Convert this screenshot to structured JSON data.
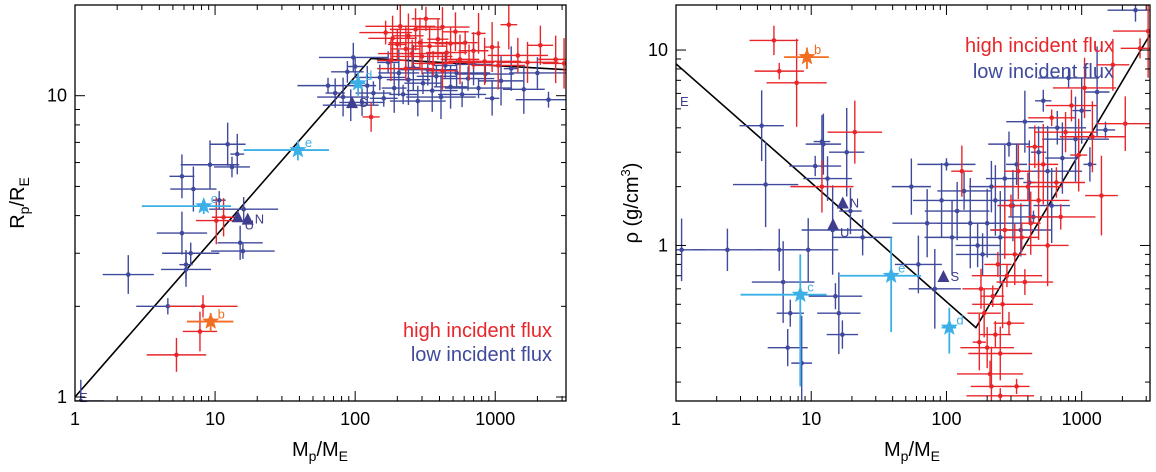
{
  "colors": {
    "high": "#e8262a",
    "low": "#3f4a9c",
    "moon": "#3bb0e6",
    "orange": "#f26d21",
    "solar": "#3f3d8f",
    "fit": "#000000"
  },
  "chart_data": [
    {
      "type": "scatter",
      "xlabel": "Mp/ME",
      "xlabel_main": "M",
      "xlabel_sub": "p",
      "xlabel_mid": "/M",
      "xlabel_sub2": "E",
      "ylabel_main": "R",
      "ylabel_sub": "p",
      "ylabel_mid": "/R",
      "ylabel_sub2": "E",
      "xscale": "log",
      "yscale": "log",
      "xlim": [
        1,
        3200
      ],
      "ylim": [
        0.97,
        20
      ],
      "x_ticks": [
        1,
        10,
        100,
        1000
      ],
      "x_tick_labels": [
        "1",
        "10",
        "100",
        "1000"
      ],
      "y_ticks": [
        1,
        10
      ],
      "y_tick_labels": [
        "1",
        "10"
      ],
      "legend": {
        "placement": "bottom-right",
        "entries": [
          {
            "label": "high incident flux",
            "color": "#e8262a"
          },
          {
            "label": "low incident flux",
            "color": "#3f4a9c"
          }
        ]
      },
      "fit_line": [
        [
          1,
          1.0
        ],
        [
          130,
          13.3
        ],
        [
          3200,
          12.2
        ]
      ],
      "highlighted": [
        {
          "label": "b",
          "x": 9.3,
          "y": 1.78,
          "color": "#f26d21",
          "xerr": [
            6.3,
            13.5
          ],
          "yerr": [
            1.65,
            1.9
          ]
        },
        {
          "label": "c",
          "x": 8.3,
          "y": 4.3,
          "color": "#3bb0e6",
          "xerr": [
            3.0,
            13.0
          ],
          "yerr": [
            4.05,
            4.55
          ]
        },
        {
          "label": "e",
          "x": 39,
          "y": 6.6,
          "color": "#3bb0e6",
          "xerr": [
            16,
            65
          ],
          "yerr": [
            6.1,
            7.1
          ]
        },
        {
          "label": "d",
          "x": 105,
          "y": 11.0,
          "color": "#3bb0e6",
          "xerr": [
            92,
            118
          ],
          "yerr": [
            10.0,
            12.0
          ]
        }
      ],
      "solar_system": [
        {
          "label": "E",
          "x": 1.0,
          "y": 1.0
        },
        {
          "label": "U",
          "x": 14.5,
          "y": 3.95
        },
        {
          "label": "N",
          "x": 17.1,
          "y": 3.88
        },
        {
          "label": "S",
          "x": 95,
          "y": 9.45
        }
      ],
      "high_flux": [
        [
          5.3,
          1.38
        ],
        [
          7.8,
          1.65
        ],
        [
          8.2,
          2.0
        ],
        [
          10.2,
          3.85
        ],
        [
          11.5,
          3.95
        ],
        [
          130,
          8.5
        ],
        [
          165,
          16.2
        ],
        [
          185,
          15.5
        ],
        [
          200,
          14.8
        ],
        [
          210,
          17.0
        ],
        [
          230,
          14.3
        ],
        [
          240,
          15.8
        ],
        [
          255,
          13.8
        ],
        [
          270,
          16.6
        ],
        [
          290,
          15.0
        ],
        [
          300,
          13.5
        ],
        [
          320,
          18.0
        ],
        [
          340,
          14.6
        ],
        [
          360,
          12.8
        ],
        [
          390,
          15.4
        ],
        [
          420,
          16.9
        ],
        [
          450,
          13.9
        ],
        [
          480,
          14.9
        ],
        [
          520,
          16.3
        ],
        [
          560,
          13.2
        ],
        [
          610,
          15.0
        ],
        [
          650,
          12.9
        ],
        [
          700,
          14.1
        ],
        [
          760,
          16.1
        ],
        [
          840,
          13.0
        ],
        [
          950,
          14.5
        ],
        [
          1050,
          12.6
        ],
        [
          1250,
          17.2
        ],
        [
          1450,
          13.6
        ],
        [
          1700,
          12.9
        ],
        [
          2100,
          14.7
        ],
        [
          2700,
          13.2
        ],
        [
          3100,
          12.8
        ],
        [
          230,
          12.3
        ],
        [
          420,
          12.1
        ],
        [
          180,
          13.1
        ]
      ],
      "low_flux": [
        [
          1.1,
          0.97
        ],
        [
          2.4,
          2.55
        ],
        [
          4.6,
          2.0
        ],
        [
          5.8,
          3.5
        ],
        [
          6.2,
          2.75
        ],
        [
          6.7,
          3.0
        ],
        [
          7.0,
          4.9
        ],
        [
          5.8,
          5.4
        ],
        [
          10.7,
          4.5
        ],
        [
          12.3,
          6.9
        ],
        [
          13.2,
          5.8
        ],
        [
          15.1,
          3.25
        ],
        [
          15.8,
          3.05
        ],
        [
          14.4,
          6.4
        ],
        [
          16.0,
          4.2
        ],
        [
          9.2,
          5.9
        ],
        [
          6.2,
          2.65
        ],
        [
          64,
          10.8
        ],
        [
          72,
          10.2
        ],
        [
          82,
          9.9
        ],
        [
          93,
          9.3
        ],
        [
          100,
          12.5
        ],
        [
          112,
          9.5
        ],
        [
          122,
          10.8
        ],
        [
          135,
          10.2
        ],
        [
          150,
          11.5
        ],
        [
          160,
          9.8
        ],
        [
          172,
          12.9
        ],
        [
          190,
          10.6
        ],
        [
          205,
          11.9
        ],
        [
          220,
          10.1
        ],
        [
          240,
          11.3
        ],
        [
          260,
          12.4
        ],
        [
          280,
          9.6
        ],
        [
          305,
          11.0
        ],
        [
          330,
          12.2
        ],
        [
          355,
          10.4
        ],
        [
          380,
          11.6
        ],
        [
          410,
          9.9
        ],
        [
          440,
          12.6
        ],
        [
          480,
          10.7
        ],
        [
          530,
          11.9
        ],
        [
          580,
          10.1
        ],
        [
          640,
          11.4
        ],
        [
          700,
          12.7
        ],
        [
          760,
          10.6
        ],
        [
          850,
          11.8
        ],
        [
          950,
          9.8
        ],
        [
          1100,
          11.2
        ],
        [
          1300,
          12.3
        ],
        [
          1600,
          10.5
        ],
        [
          2000,
          11.9
        ],
        [
          2400,
          9.7
        ],
        [
          97,
          13.4
        ],
        [
          88,
          12.0
        ]
      ]
    },
    {
      "type": "scatter",
      "xlabel": "Mp/ME",
      "xlabel_main": "M",
      "xlabel_sub": "p",
      "xlabel_mid": "/M",
      "xlabel_sub2": "E",
      "ylabel": "ρ (g/cm3)",
      "ylabel_main": "ρ (g/cm",
      "ylabel_sup": "3",
      "ylabel_end": ")",
      "xscale": "log",
      "yscale": "log",
      "xlim": [
        1,
        3200
      ],
      "ylim": [
        0.16,
        17
      ],
      "x_ticks": [
        1,
        10,
        100,
        1000
      ],
      "x_tick_labels": [
        "1",
        "10",
        "100",
        "1000"
      ],
      "y_ticks": [
        1,
        10
      ],
      "y_tick_labels": [
        "1",
        "10"
      ],
      "legend": {
        "placement": "top-right",
        "entries": [
          {
            "label": "high incident flux",
            "color": "#e8262a"
          },
          {
            "label": "low incident flux",
            "color": "#3f4a9c"
          }
        ]
      },
      "fit_line": [
        [
          1,
          8.5
        ],
        [
          165,
          0.38
        ],
        [
          3200,
          12.0
        ]
      ],
      "highlighted": [
        {
          "label": "b",
          "x": 9.3,
          "y": 9.2,
          "color": "#f26d21",
          "xerr": [
            6.3,
            13.5
          ],
          "yerr": [
            8.0,
            10.3
          ]
        },
        {
          "label": "c",
          "x": 8.3,
          "y": 0.56,
          "color": "#3bb0e6",
          "xerr": [
            3.0,
            13.0
          ],
          "yerr": [
            0.19,
            0.9
          ]
        },
        {
          "label": "e",
          "x": 39,
          "y": 0.7,
          "color": "#3bb0e6",
          "xerr": [
            16,
            65
          ],
          "yerr": [
            0.36,
            1.1
          ]
        },
        {
          "label": "d",
          "x": 105,
          "y": 0.38,
          "color": "#3bb0e6",
          "xerr": [
            92,
            118
          ],
          "yerr": [
            0.28,
            0.48
          ]
        }
      ],
      "solar_system": [
        {
          "label": "E",
          "x": 1.0,
          "y": 5.5
        },
        {
          "label": "N",
          "x": 17.1,
          "y": 1.64
        },
        {
          "label": "U",
          "x": 14.5,
          "y": 1.27
        },
        {
          "label": "S",
          "x": 95,
          "y": 0.69
        }
      ],
      "high_flux": [
        [
          5.3,
          11.2
        ],
        [
          5.8,
          7.8
        ],
        [
          7.8,
          6.8
        ],
        [
          12.0,
          2.0
        ],
        [
          130,
          2.4
        ],
        [
          21,
          3.8
        ],
        [
          180,
          0.6
        ],
        [
          190,
          0.45
        ],
        [
          200,
          0.3
        ],
        [
          210,
          0.22
        ],
        [
          220,
          0.55
        ],
        [
          230,
          0.35
        ],
        [
          240,
          0.8
        ],
        [
          250,
          0.28
        ],
        [
          260,
          0.5
        ],
        [
          270,
          1.2
        ],
        [
          280,
          0.7
        ],
        [
          290,
          0.4
        ],
        [
          300,
          1.6
        ],
        [
          320,
          0.9
        ],
        [
          340,
          2.4
        ],
        [
          360,
          1.1
        ],
        [
          380,
          0.65
        ],
        [
          400,
          2.0
        ],
        [
          420,
          1.3
        ],
        [
          450,
          3.2
        ],
        [
          480,
          1.7
        ],
        [
          520,
          2.6
        ],
        [
          560,
          1.0
        ],
        [
          600,
          4.5
        ],
        [
          650,
          2.1
        ],
        [
          700,
          1.4
        ],
        [
          760,
          3.8
        ],
        [
          840,
          5.2
        ],
        [
          950,
          2.9
        ],
        [
          1050,
          6.4
        ],
        [
          1200,
          3.6
        ],
        [
          1400,
          1.8
        ],
        [
          1700,
          8.4
        ],
        [
          2100,
          4.2
        ],
        [
          2700,
          10.2
        ],
        [
          3100,
          12.5
        ],
        [
          215,
          0.19
        ],
        [
          250,
          0.17
        ],
        [
          330,
          0.19
        ],
        [
          175,
          0.32
        ]
      ],
      "low_flux": [
        [
          1.1,
          0.95
        ],
        [
          2.4,
          0.95
        ],
        [
          4.3,
          4.1
        ],
        [
          4.6,
          2.05
        ],
        [
          5.8,
          0.95
        ],
        [
          6.2,
          0.65
        ],
        [
          6.7,
          0.3
        ],
        [
          7.0,
          0.45
        ],
        [
          8.5,
          0.25
        ],
        [
          9.5,
          0.95
        ],
        [
          10.7,
          2.55
        ],
        [
          12.0,
          3.4
        ],
        [
          12.3,
          3.3
        ],
        [
          13.2,
          2.2
        ],
        [
          14.4,
          1.2
        ],
        [
          15.1,
          0.55
        ],
        [
          16.0,
          0.45
        ],
        [
          17.0,
          0.35
        ],
        [
          18.3,
          3.0
        ],
        [
          19.5,
          1.5
        ],
        [
          24,
          1.1
        ],
        [
          55,
          2.0
        ],
        [
          62,
          0.8
        ],
        [
          72,
          1.3
        ],
        [
          82,
          0.6
        ],
        [
          92,
          1.7
        ],
        [
          100,
          2.6
        ],
        [
          110,
          1.1
        ],
        [
          120,
          1.5
        ],
        [
          135,
          1.9
        ],
        [
          150,
          1.3
        ],
        [
          170,
          1.0
        ],
        [
          185,
          0.9
        ],
        [
          200,
          1.3
        ],
        [
          215,
          2.0
        ],
        [
          230,
          1.7
        ],
        [
          250,
          1.1
        ],
        [
          270,
          2.2
        ],
        [
          290,
          3.3
        ],
        [
          310,
          1.6
        ],
        [
          330,
          2.6
        ],
        [
          355,
          1.2
        ],
        [
          380,
          4.3
        ],
        [
          410,
          2.1
        ],
        [
          440,
          1.4
        ],
        [
          480,
          3.0
        ],
        [
          520,
          5.5
        ],
        [
          560,
          2.4
        ],
        [
          600,
          1.6
        ],
        [
          660,
          4.0
        ],
        [
          720,
          2.8
        ],
        [
          800,
          7.2
        ],
        [
          900,
          3.5
        ],
        [
          1000,
          4.9
        ],
        [
          1150,
          2.6
        ],
        [
          1300,
          6.1
        ],
        [
          1500,
          3.9
        ],
        [
          2500,
          16.0
        ]
      ]
    }
  ]
}
